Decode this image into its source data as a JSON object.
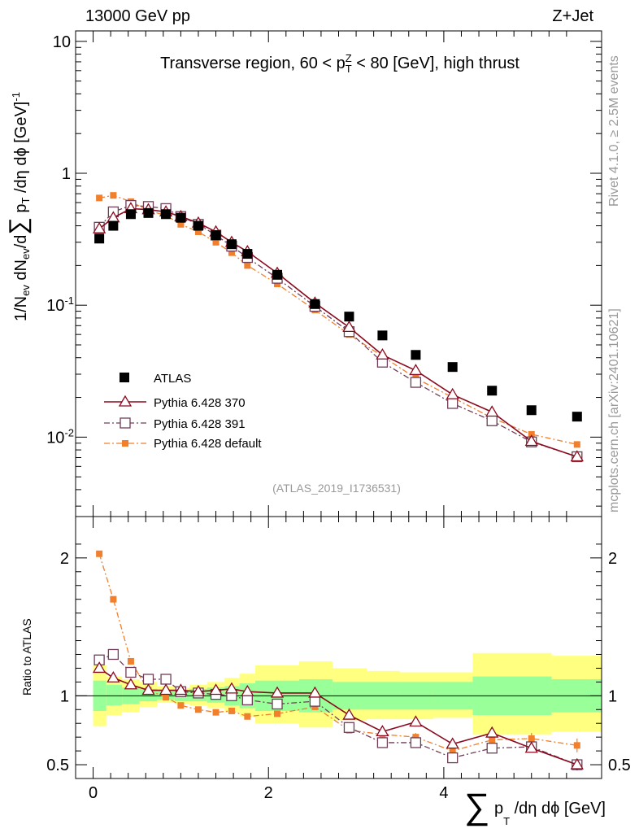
{
  "header": {
    "energy": "13000 GeV pp",
    "process": "Z+Jet"
  },
  "side_labels": {
    "rivet": "Rivet 4.1.0, ≥ 2.5M events",
    "mcplots": "mcplots.cern.ch [arXiv:2401.10621]"
  },
  "colors": {
    "data": "#000000",
    "p370": "#8b0a1e",
    "p391": "#6e3d57",
    "pdefault": "#f27f2c",
    "band_inner": "#99ff99",
    "band_outer": "#ffff80"
  },
  "chart_data": [
    {
      "type": "line",
      "title": "Transverse region, 60 < p_T^Z < 80 [GeV], high thrust",
      "analysis": "(ATLAS_2019_I1736531)",
      "ylabel_parts": [
        "1/N",
        "ev",
        " dN",
        "ev",
        "/d",
        "∑",
        "p",
        "T",
        " /dη dϕ  [GeV]",
        "-1"
      ],
      "yscale": "log",
      "ylim": [
        0.0025,
        12
      ],
      "xlim": [
        -0.2,
        5.8
      ],
      "yticks_major": [
        {
          "value": 0.01,
          "base": "10",
          "exp": "-2"
        },
        {
          "value": 0.1,
          "base": "10",
          "exp": "-1"
        },
        {
          "value": 1,
          "base": "1",
          "exp": ""
        },
        {
          "value": 10,
          "base": "10",
          "exp": ""
        }
      ],
      "x": [
        0.07,
        0.23,
        0.43,
        0.63,
        0.83,
        1.0,
        1.2,
        1.4,
        1.58,
        1.76,
        2.1,
        2.53,
        2.92,
        3.3,
        3.68,
        4.1,
        4.55,
        5.0,
        5.52
      ],
      "series": [
        {
          "name": "ATLAS",
          "marker": "filled-square",
          "values": [
            0.32,
            0.4,
            0.49,
            0.5,
            0.49,
            0.46,
            0.4,
            0.34,
            0.29,
            0.245,
            0.17,
            0.102,
            0.082,
            0.059,
            0.042,
            0.034,
            0.0225,
            0.016,
            0.0143
          ]
        },
        {
          "name": "Pythia 6.428 370",
          "marker": "open-triangle",
          "style": "solid",
          "values": [
            0.38,
            0.46,
            0.54,
            0.53,
            0.51,
            0.47,
            0.42,
            0.36,
            0.3,
            0.255,
            0.175,
            0.104,
            0.068,
            0.042,
            0.032,
            0.021,
            0.0155,
            0.0093,
            0.0071
          ]
        },
        {
          "name": "Pythia 6.428 391",
          "marker": "open-square",
          "style": "dashdot",
          "values": [
            0.39,
            0.51,
            0.57,
            0.56,
            0.54,
            0.47,
            0.41,
            0.34,
            0.28,
            0.23,
            0.16,
            0.098,
            0.063,
            0.037,
            0.026,
            0.018,
            0.0133,
            0.0092,
            0.0071
          ]
        },
        {
          "name": "Pythia 6.428 default",
          "marker": "small-filled-square",
          "style": "dashdot",
          "values": [
            0.65,
            0.68,
            0.61,
            0.52,
            0.48,
            0.41,
            0.36,
            0.3,
            0.25,
            0.2,
            0.145,
            0.092,
            0.06,
            0.041,
            0.028,
            0.02,
            0.014,
            0.0105,
            0.0088
          ]
        }
      ]
    },
    {
      "type": "line",
      "ylabel": "Ratio to ATLAS",
      "xlabel_parts": [
        "∑",
        "p",
        "T",
        "/dη dϕ [GeV]"
      ],
      "ylim": [
        0.4,
        2.3
      ],
      "xlim": [
        -0.2,
        5.8
      ],
      "xticks": [
        0,
        2,
        4
      ],
      "yticks": [
        0.5,
        1,
        2
      ],
      "band_edges": [
        0,
        0.15,
        0.33,
        0.53,
        0.73,
        0.93,
        1.1,
        1.3,
        1.5,
        1.67,
        1.85,
        2.35,
        2.73,
        3.12,
        3.5,
        3.88,
        4.33,
        4.78,
        5.23,
        5.8
      ],
      "band_inner": [
        [
          0.89,
          1.11
        ],
        [
          0.93,
          1.08
        ],
        [
          0.94,
          1.06
        ],
        [
          0.96,
          1.05
        ],
        [
          0.97,
          1.04
        ],
        [
          0.96,
          1.04
        ],
        [
          0.96,
          1.05
        ],
        [
          0.95,
          1.06
        ],
        [
          0.93,
          1.07
        ],
        [
          0.91,
          1.09
        ],
        [
          0.89,
          1.11
        ],
        [
          0.88,
          1.12
        ],
        [
          0.9,
          1.1
        ],
        [
          0.9,
          1.1
        ],
        [
          0.9,
          1.1
        ],
        [
          0.9,
          1.1
        ],
        [
          0.86,
          1.14
        ],
        [
          0.86,
          1.14
        ],
        [
          0.88,
          1.12
        ]
      ],
      "band_outer": [
        [
          0.78,
          1.22
        ],
        [
          0.86,
          1.14
        ],
        [
          0.88,
          1.12
        ],
        [
          0.92,
          1.1
        ],
        [
          0.95,
          1.07
        ],
        [
          0.94,
          1.06
        ],
        [
          0.93,
          1.08
        ],
        [
          0.91,
          1.1
        ],
        [
          0.88,
          1.13
        ],
        [
          0.85,
          1.16
        ],
        [
          0.8,
          1.22
        ],
        [
          0.77,
          1.25
        ],
        [
          0.82,
          1.2
        ],
        [
          0.83,
          1.18
        ],
        [
          0.83,
          1.17
        ],
        [
          0.84,
          1.17
        ],
        [
          0.72,
          1.31
        ],
        [
          0.72,
          1.31
        ],
        [
          0.74,
          1.29
        ]
      ],
      "series": [
        {
          "name": "Pythia 6.428 370",
          "values": [
            1.2,
            1.13,
            1.08,
            1.04,
            1.04,
            1.04,
            1.03,
            1.04,
            1.05,
            1.03,
            1.02,
            1.02,
            0.86,
            0.74,
            0.81,
            0.65,
            0.73,
            0.62,
            0.5
          ],
          "errors": [
            0.02,
            0.02,
            0.02,
            0.01,
            0.01,
            0.01,
            0.01,
            0.01,
            0.01,
            0.01,
            0.01,
            0.02,
            0.02,
            0.02,
            0.02,
            0.03,
            0.03,
            0.03,
            0.04
          ]
        },
        {
          "name": "Pythia 6.428 391",
          "values": [
            1.26,
            1.3,
            1.17,
            1.12,
            1.12,
            1.03,
            1.02,
            1.01,
            1.0,
            0.97,
            0.94,
            0.96,
            0.77,
            0.66,
            0.66,
            0.55,
            0.62,
            0.63,
            0.5
          ],
          "errors": [
            0.02,
            0.02,
            0.02,
            0.01,
            0.01,
            0.01,
            0.01,
            0.01,
            0.01,
            0.01,
            0.01,
            0.02,
            0.02,
            0.02,
            0.02,
            0.03,
            0.03,
            0.03,
            0.04
          ]
        },
        {
          "name": "Pythia 6.428 default",
          "values": [
            2.03,
            1.7,
            1.25,
            1.04,
            0.99,
            0.93,
            0.9,
            0.88,
            0.89,
            0.85,
            0.87,
            0.92,
            0.75,
            0.72,
            0.7,
            0.6,
            0.68,
            0.69,
            0.64
          ],
          "errors": [
            0.02,
            0.02,
            0.02,
            0.01,
            0.01,
            0.01,
            0.01,
            0.01,
            0.01,
            0.01,
            0.01,
            0.02,
            0.02,
            0.03,
            0.03,
            0.03,
            0.03,
            0.04,
            0.05
          ]
        }
      ]
    }
  ]
}
